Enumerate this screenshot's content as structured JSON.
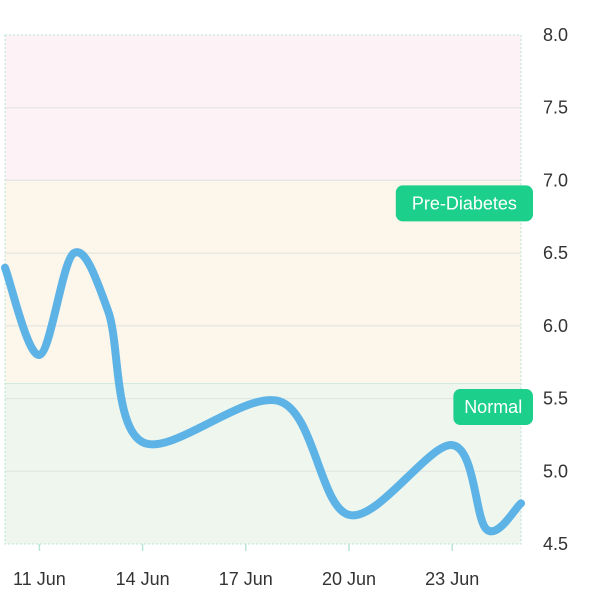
{
  "chart_data": {
    "type": "line",
    "x_unit": "date",
    "ylim": [
      4.5,
      8.0
    ],
    "xlim": [
      "2023-06-10",
      "2023-06-25"
    ],
    "y_ticks": [
      8.0,
      7.5,
      7.0,
      6.5,
      6.0,
      5.5,
      5.0,
      4.5
    ],
    "y_tick_labels": [
      "8.0",
      "7.5",
      "7.0",
      "6.5",
      "6.0",
      "5.5",
      "5.0",
      "4.5"
    ],
    "x_ticks": [
      "2023-06-11",
      "2023-06-14",
      "2023-06-17",
      "2023-06-20",
      "2023-06-23"
    ],
    "x_tick_labels": [
      "11 Jun",
      "14 Jun",
      "17 Jun",
      "20 Jun",
      "23 Jun"
    ],
    "grid": true,
    "bands": [
      {
        "label": "",
        "from": 7.0,
        "to": 8.0,
        "color": "#fdf2f6"
      },
      {
        "label": "Pre-Diabetes",
        "from": 5.6,
        "to": 7.0,
        "color": "#fdf6ea"
      },
      {
        "label": "Normal",
        "from": 4.5,
        "to": 5.6,
        "color": "#eef6ee"
      }
    ],
    "badge_color": "#1ccf8b",
    "series": [
      {
        "color": "#5eb3e6",
        "points": [
          {
            "x": "2023-06-10",
            "y": 6.4
          },
          {
            "x": "2023-06-11",
            "y": 5.8
          },
          {
            "x": "2023-06-12",
            "y": 6.5
          },
          {
            "x": "2023-06-13",
            "y": 6.1
          },
          {
            "x": "2023-06-14",
            "y": 5.2
          },
          {
            "x": "2023-06-18",
            "y": 5.48
          },
          {
            "x": "2023-06-20",
            "y": 4.7
          },
          {
            "x": "2023-06-23",
            "y": 5.18
          },
          {
            "x": "2023-06-24",
            "y": 4.6
          },
          {
            "x": "2023-06-25",
            "y": 4.78
          }
        ]
      }
    ]
  }
}
